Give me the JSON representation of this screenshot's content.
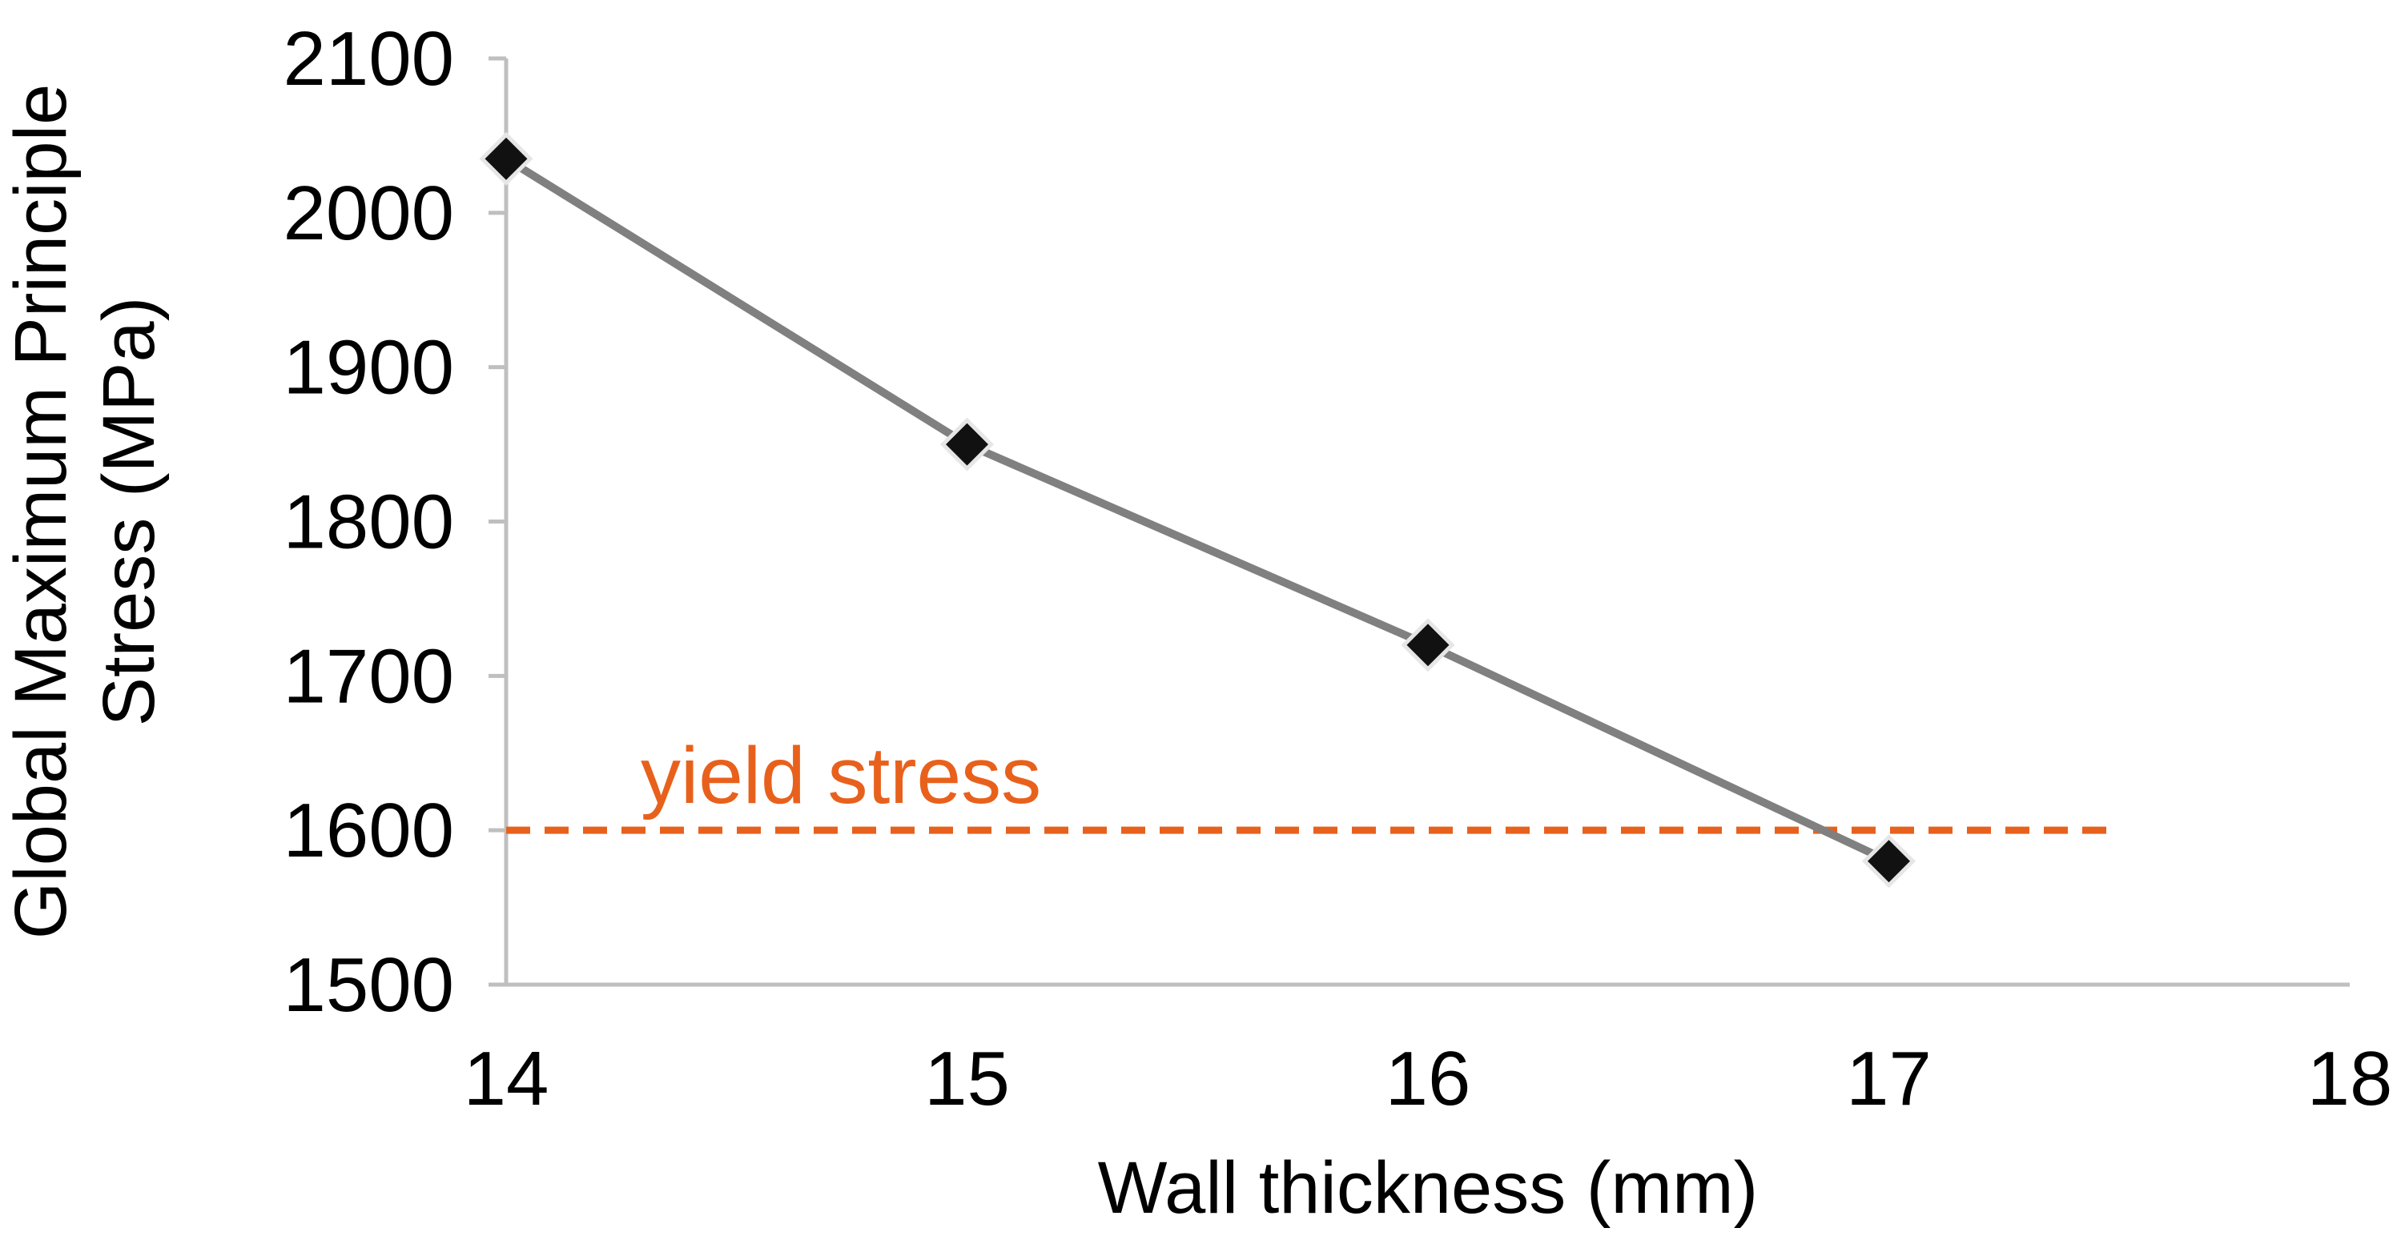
{
  "chart_data": {
    "type": "line",
    "title": "",
    "xlabel": "Wall thickness (mm)",
    "ylabel": "Global Maximum Principle Stress (MPa)",
    "ylabel_lines": [
      "Global Maximum Principle",
      "Stress (MPa)"
    ],
    "x": [
      14,
      15,
      16,
      17
    ],
    "series": [
      {
        "name": "Global Maximum Principle Stress",
        "values": [
          2035,
          1850,
          1720,
          1580
        ],
        "line_color": "#808080",
        "marker": "diamond",
        "marker_color": "#111111",
        "marker_outline": "#E7E6E6"
      }
    ],
    "reference_line": {
      "value": 1600,
      "x_start": 14,
      "x_end": 17.5,
      "color": "#E8611C",
      "style": "dashed"
    },
    "annotation": {
      "label": "yield stress",
      "color": "#E8611C"
    },
    "xlim": [
      14,
      18
    ],
    "ylim": [
      1500,
      2100
    ],
    "x_ticks": [
      "14",
      "15",
      "16",
      "17",
      "18"
    ],
    "x_tick_values": [
      14,
      15,
      16,
      17,
      18
    ],
    "y_ticks": [
      "1500",
      "1600",
      "1700",
      "1800",
      "1900",
      "2000",
      "2100"
    ],
    "y_tick_values": [
      1500,
      1600,
      1700,
      1800,
      1900,
      2000,
      2100
    ],
    "grid": false,
    "legend": false,
    "axis_color": "#BFBFBF",
    "text_color": "#000000",
    "background": "#FFFFFF"
  }
}
